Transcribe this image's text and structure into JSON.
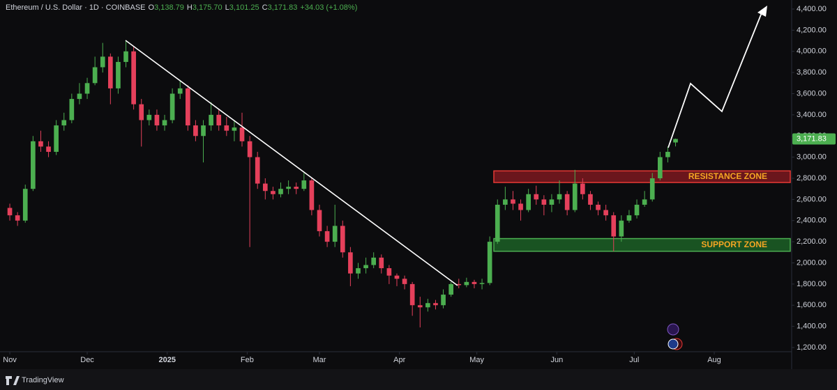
{
  "header": {
    "symbol": "Ethereum / U.S. Dollar · 1D · COINBASE",
    "o_label": "O",
    "open": "3,138.79",
    "h_label": "H",
    "high": "3,175.70",
    "l_label": "L",
    "low": "3,101.25",
    "c_label": "C",
    "close": "3,171.83",
    "change": "+34.03 (+1.08%)"
  },
  "footer": {
    "brand": "TradingView"
  },
  "chart_data": {
    "type": "candlestick",
    "up_color": "#4caf50",
    "down_color": "#e5405b",
    "xlim": [
      -3.8,
      303
    ],
    "ylim": [
      1200,
      4400
    ],
    "xticks": [
      {
        "value": 0,
        "label": "Nov"
      },
      {
        "value": 30,
        "label": "Dec"
      },
      {
        "value": 61,
        "label": "2025"
      },
      {
        "value": 92,
        "label": "Feb"
      },
      {
        "value": 120,
        "label": "Mar"
      },
      {
        "value": 151,
        "label": "Apr"
      },
      {
        "value": 181,
        "label": "May"
      },
      {
        "value": 212,
        "label": "Jun"
      },
      {
        "value": 242,
        "label": "Jul"
      },
      {
        "value": 273,
        "label": "Aug"
      }
    ],
    "yticks": [
      {
        "value": 1200,
        "label": "1,200.00"
      },
      {
        "value": 1400,
        "label": "1,400.00"
      },
      {
        "value": 1600,
        "label": "1,600.00"
      },
      {
        "value": 1800,
        "label": "1,800.00"
      },
      {
        "value": 2000,
        "label": "2,000.00"
      },
      {
        "value": 2200,
        "label": "2,200.00"
      },
      {
        "value": 2400,
        "label": "2,400.00"
      },
      {
        "value": 2600,
        "label": "2,600.00"
      },
      {
        "value": 2800,
        "label": "2,800.00"
      },
      {
        "value": 3000,
        "label": "3,000.00"
      },
      {
        "value": 3200,
        "label": "3,200.00"
      },
      {
        "value": 3400,
        "label": "3,400.00"
      },
      {
        "value": 3600,
        "label": "3,600.00"
      },
      {
        "value": 3800,
        "label": "3,800.00"
      },
      {
        "value": 4000,
        "label": "4,000.00"
      },
      {
        "value": 4200,
        "label": "4,200.00"
      },
      {
        "value": 4400,
        "label": "4,400.00"
      }
    ],
    "last_price": {
      "value": 3171.83,
      "label": "3,171.83",
      "color": "#4caf50"
    },
    "zones": [
      {
        "label": "RESISTANCE ZONE",
        "low": 2760,
        "high": 2870,
        "fill": "#8b1a22",
        "stroke": "#e53935"
      },
      {
        "label": "SUPPORT ZONE",
        "low": 2110,
        "high": 2230,
        "fill": "#1e6b2a",
        "stroke": "#4caf50"
      }
    ],
    "candles": [
      {
        "x": 0,
        "open": 2520,
        "high": 2560,
        "low": 2400,
        "close": 2450
      },
      {
        "x": 3,
        "open": 2450,
        "high": 2480,
        "low": 2350,
        "close": 2400
      },
      {
        "x": 6,
        "open": 2400,
        "high": 2740,
        "low": 2380,
        "close": 2700
      },
      {
        "x": 9,
        "open": 2700,
        "high": 3200,
        "low": 2680,
        "close": 3150
      },
      {
        "x": 12,
        "open": 3150,
        "high": 3250,
        "low": 3050,
        "close": 3100
      },
      {
        "x": 15,
        "open": 3100,
        "high": 3150,
        "low": 3000,
        "close": 3050
      },
      {
        "x": 18,
        "open": 3050,
        "high": 3350,
        "low": 3020,
        "close": 3300
      },
      {
        "x": 21,
        "open": 3300,
        "high": 3420,
        "low": 3250,
        "close": 3350
      },
      {
        "x": 24,
        "open": 3350,
        "high": 3600,
        "low": 3320,
        "close": 3550
      },
      {
        "x": 27,
        "open": 3550,
        "high": 3700,
        "low": 3500,
        "close": 3600
      },
      {
        "x": 30,
        "open": 3600,
        "high": 3750,
        "low": 3550,
        "close": 3700
      },
      {
        "x": 33,
        "open": 3700,
        "high": 3950,
        "low": 3680,
        "close": 3850
      },
      {
        "x": 36,
        "open": 3850,
        "high": 4080,
        "low": 3800,
        "close": 3950
      },
      {
        "x": 39,
        "open": 3950,
        "high": 3980,
        "low": 3500,
        "close": 3650
      },
      {
        "x": 42,
        "open": 3650,
        "high": 3950,
        "low": 3600,
        "close": 3900
      },
      {
        "x": 45,
        "open": 3900,
        "high": 4100,
        "low": 3850,
        "close": 4000
      },
      {
        "x": 48,
        "open": 4000,
        "high": 4050,
        "low": 3450,
        "close": 3500
      },
      {
        "x": 51,
        "open": 3500,
        "high": 3550,
        "low": 3100,
        "close": 3350
      },
      {
        "x": 54,
        "open": 3350,
        "high": 3450,
        "low": 3300,
        "close": 3400
      },
      {
        "x": 57,
        "open": 3400,
        "high": 3450,
        "low": 3250,
        "close": 3300
      },
      {
        "x": 60,
        "open": 3300,
        "high": 3400,
        "low": 3250,
        "close": 3350
      },
      {
        "x": 63,
        "open": 3350,
        "high": 3650,
        "low": 3320,
        "close": 3600
      },
      {
        "x": 66,
        "open": 3600,
        "high": 3730,
        "low": 3550,
        "close": 3650
      },
      {
        "x": 69,
        "open": 3650,
        "high": 3680,
        "low": 3250,
        "close": 3300
      },
      {
        "x": 72,
        "open": 3300,
        "high": 3350,
        "low": 3150,
        "close": 3200
      },
      {
        "x": 75,
        "open": 3200,
        "high": 3350,
        "low": 2950,
        "close": 3300
      },
      {
        "x": 78,
        "open": 3300,
        "high": 3520,
        "low": 3250,
        "close": 3400
      },
      {
        "x": 81,
        "open": 3400,
        "high": 3450,
        "low": 3250,
        "close": 3300
      },
      {
        "x": 84,
        "open": 3300,
        "high": 3380,
        "low": 3200,
        "close": 3250
      },
      {
        "x": 87,
        "open": 3250,
        "high": 3350,
        "low": 3150,
        "close": 3280
      },
      {
        "x": 90,
        "open": 3280,
        "high": 3420,
        "low": 3100,
        "close": 3150
      },
      {
        "x": 93,
        "open": 3150,
        "high": 3200,
        "low": 2150,
        "close": 3000
      },
      {
        "x": 96,
        "open": 3000,
        "high": 3050,
        "low": 2700,
        "close": 2750
      },
      {
        "x": 99,
        "open": 2750,
        "high": 2800,
        "low": 2600,
        "close": 2680
      },
      {
        "x": 102,
        "open": 2680,
        "high": 2720,
        "low": 2600,
        "close": 2650
      },
      {
        "x": 105,
        "open": 2650,
        "high": 2760,
        "low": 2620,
        "close": 2700
      },
      {
        "x": 108,
        "open": 2700,
        "high": 2780,
        "low": 2650,
        "close": 2720
      },
      {
        "x": 111,
        "open": 2720,
        "high": 2760,
        "low": 2650,
        "close": 2700
      },
      {
        "x": 114,
        "open": 2700,
        "high": 2850,
        "low": 2680,
        "close": 2780
      },
      {
        "x": 117,
        "open": 2780,
        "high": 2800,
        "low": 2450,
        "close": 2500
      },
      {
        "x": 120,
        "open": 2500,
        "high": 2550,
        "low": 2250,
        "close": 2300
      },
      {
        "x": 123,
        "open": 2300,
        "high": 2350,
        "low": 2150,
        "close": 2200
      },
      {
        "x": 126,
        "open": 2200,
        "high": 2550,
        "low": 2150,
        "close": 2350
      },
      {
        "x": 129,
        "open": 2350,
        "high": 2400,
        "low": 2050,
        "close": 2100
      },
      {
        "x": 132,
        "open": 2100,
        "high": 2150,
        "low": 1780,
        "close": 1900
      },
      {
        "x": 135,
        "open": 1900,
        "high": 2000,
        "low": 1850,
        "close": 1950
      },
      {
        "x": 138,
        "open": 1950,
        "high": 2050,
        "low": 1900,
        "close": 1980
      },
      {
        "x": 141,
        "open": 1980,
        "high": 2100,
        "low": 1950,
        "close": 2050
      },
      {
        "x": 144,
        "open": 2050,
        "high": 2080,
        "low": 1900,
        "close": 1950
      },
      {
        "x": 147,
        "open": 1950,
        "high": 1980,
        "low": 1800,
        "close": 1880
      },
      {
        "x": 150,
        "open": 1880,
        "high": 1900,
        "low": 1780,
        "close": 1850
      },
      {
        "x": 153,
        "open": 1850,
        "high": 1880,
        "low": 1750,
        "close": 1800
      },
      {
        "x": 156,
        "open": 1800,
        "high": 1820,
        "low": 1500,
        "close": 1600
      },
      {
        "x": 159,
        "open": 1600,
        "high": 1680,
        "low": 1390,
        "close": 1580
      },
      {
        "x": 162,
        "open": 1580,
        "high": 1660,
        "low": 1540,
        "close": 1620
      },
      {
        "x": 165,
        "open": 1620,
        "high": 1650,
        "low": 1560,
        "close": 1600
      },
      {
        "x": 168,
        "open": 1600,
        "high": 1750,
        "low": 1570,
        "close": 1700
      },
      {
        "x": 171,
        "open": 1700,
        "high": 1820,
        "low": 1680,
        "close": 1800
      },
      {
        "x": 174,
        "open": 1800,
        "high": 1850,
        "low": 1760,
        "close": 1790
      },
      {
        "x": 177,
        "open": 1790,
        "high": 1860,
        "low": 1770,
        "close": 1820
      },
      {
        "x": 180,
        "open": 1820,
        "high": 1840,
        "low": 1760,
        "close": 1800
      },
      {
        "x": 183,
        "open": 1800,
        "high": 1850,
        "low": 1750,
        "close": 1810
      },
      {
        "x": 186,
        "open": 1810,
        "high": 2250,
        "low": 1790,
        "close": 2200
      },
      {
        "x": 189,
        "open": 2200,
        "high": 2600,
        "low": 2180,
        "close": 2550
      },
      {
        "x": 192,
        "open": 2550,
        "high": 2720,
        "low": 2500,
        "close": 2600
      },
      {
        "x": 195,
        "open": 2600,
        "high": 2680,
        "low": 2500,
        "close": 2560
      },
      {
        "x": 198,
        "open": 2560,
        "high": 2600,
        "low": 2400,
        "close": 2500
      },
      {
        "x": 201,
        "open": 2500,
        "high": 2700,
        "low": 2480,
        "close": 2650
      },
      {
        "x": 204,
        "open": 2650,
        "high": 2730,
        "low": 2550,
        "close": 2600
      },
      {
        "x": 207,
        "open": 2600,
        "high": 2640,
        "low": 2450,
        "close": 2550
      },
      {
        "x": 210,
        "open": 2550,
        "high": 2650,
        "low": 2480,
        "close": 2600
      },
      {
        "x": 213,
        "open": 2600,
        "high": 2780,
        "low": 2560,
        "close": 2650
      },
      {
        "x": 216,
        "open": 2650,
        "high": 2680,
        "low": 2450,
        "close": 2500
      },
      {
        "x": 219,
        "open": 2500,
        "high": 2880,
        "low": 2480,
        "close": 2750
      },
      {
        "x": 222,
        "open": 2750,
        "high": 2800,
        "low": 2600,
        "close": 2650
      },
      {
        "x": 225,
        "open": 2650,
        "high": 2680,
        "low": 2500,
        "close": 2550
      },
      {
        "x": 228,
        "open": 2550,
        "high": 2580,
        "low": 2450,
        "close": 2500
      },
      {
        "x": 231,
        "open": 2500,
        "high": 2550,
        "low": 2400,
        "close": 2450
      },
      {
        "x": 234,
        "open": 2450,
        "high": 2480,
        "low": 2110,
        "close": 2250
      },
      {
        "x": 237,
        "open": 2250,
        "high": 2450,
        "low": 2200,
        "close": 2400
      },
      {
        "x": 240,
        "open": 2400,
        "high": 2500,
        "low": 2380,
        "close": 2450
      },
      {
        "x": 243,
        "open": 2450,
        "high": 2600,
        "low": 2420,
        "close": 2550
      },
      {
        "x": 246,
        "open": 2550,
        "high": 2680,
        "low": 2530,
        "close": 2600
      },
      {
        "x": 249,
        "open": 2600,
        "high": 2850,
        "low": 2580,
        "close": 2800
      },
      {
        "x": 252,
        "open": 2800,
        "high": 3050,
        "low": 2780,
        "close": 3000
      },
      {
        "x": 255,
        "open": 3000,
        "high": 3100,
        "low": 2950,
        "close": 3050
      },
      {
        "x": 258,
        "open": 3138.79,
        "high": 3175.7,
        "low": 3101.25,
        "close": 3171.83
      }
    ]
  }
}
